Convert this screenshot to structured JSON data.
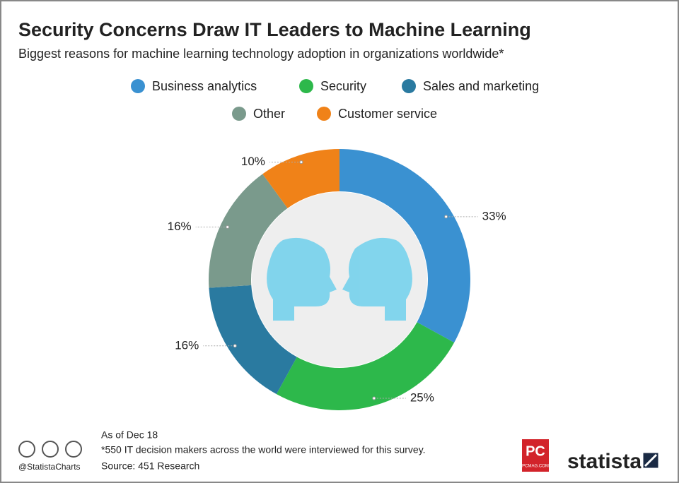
{
  "chart_data": {
    "type": "pie",
    "title": "Security Concerns Draw IT Leaders to Machine Learning",
    "subtitle": "Biggest reasons for machine learning technology adoption in organizations worldwide*",
    "categories": [
      "Business analytics",
      "Security",
      "Sales and marketing",
      "Other",
      "Customer service"
    ],
    "values": [
      33,
      25,
      16,
      16,
      10
    ],
    "value_labels": [
      "33%",
      "25%",
      "16%",
      "16%",
      "10%"
    ],
    "colors": [
      "#3a91d1",
      "#2db84b",
      "#2a7aa0",
      "#7a9a8c",
      "#f08218"
    ],
    "donut": true
  },
  "footer": {
    "date_note": "As of Dec 18",
    "footnote": "*550 IT decision makers across the world were interviewed for this survey.",
    "source": "Source: 451 Research",
    "handle": "@StatistaCharts",
    "brand": "statista",
    "partner_logo": "PC",
    "partner_site": "PCMAG.COM"
  }
}
